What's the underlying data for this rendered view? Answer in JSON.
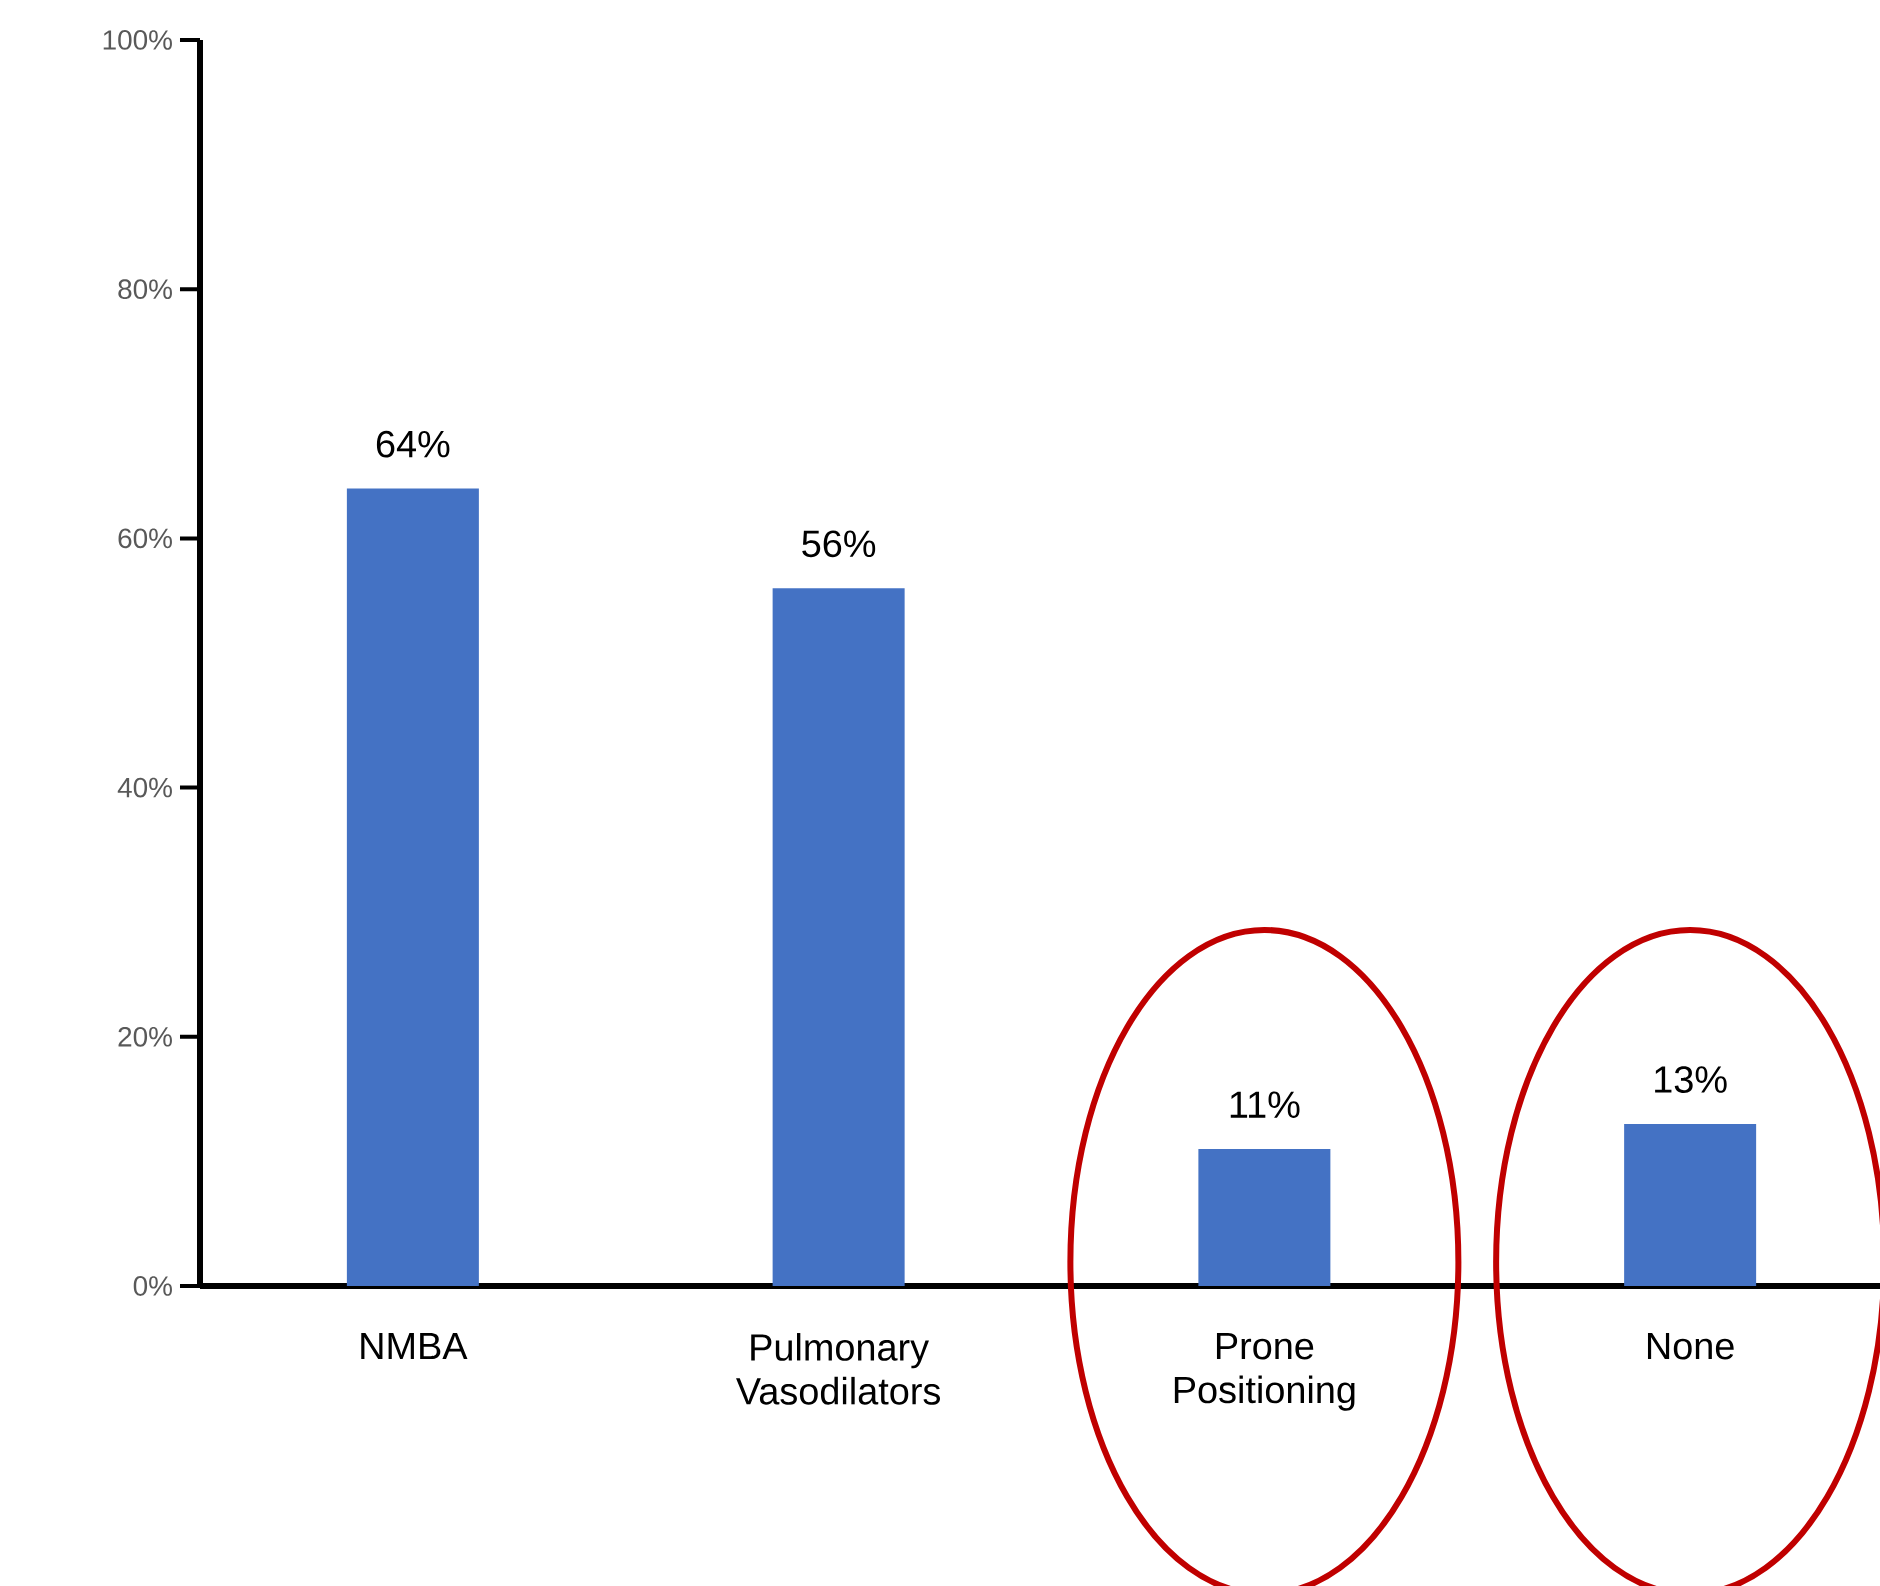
{
  "chart_data": {
    "type": "bar",
    "categories": [
      "NMBA",
      "Pulmonary Vasodilators",
      "Prone Positioning",
      "None"
    ],
    "values": [
      64,
      56,
      11,
      13
    ],
    "value_labels": [
      "64%",
      "56%",
      "11%",
      "13%"
    ],
    "color": "#4472c4",
    "ylim": [
      0,
      100
    ],
    "yticks": [
      {
        "value": 0,
        "label": "0%"
      },
      {
        "value": 20,
        "label": "20%"
      },
      {
        "value": 40,
        "label": "40%"
      },
      {
        "value": 60,
        "label": "60%"
      },
      {
        "value": 80,
        "label": "80%"
      },
      {
        "value": 100,
        "label": "100%"
      }
    ],
    "grid": false
  }
}
